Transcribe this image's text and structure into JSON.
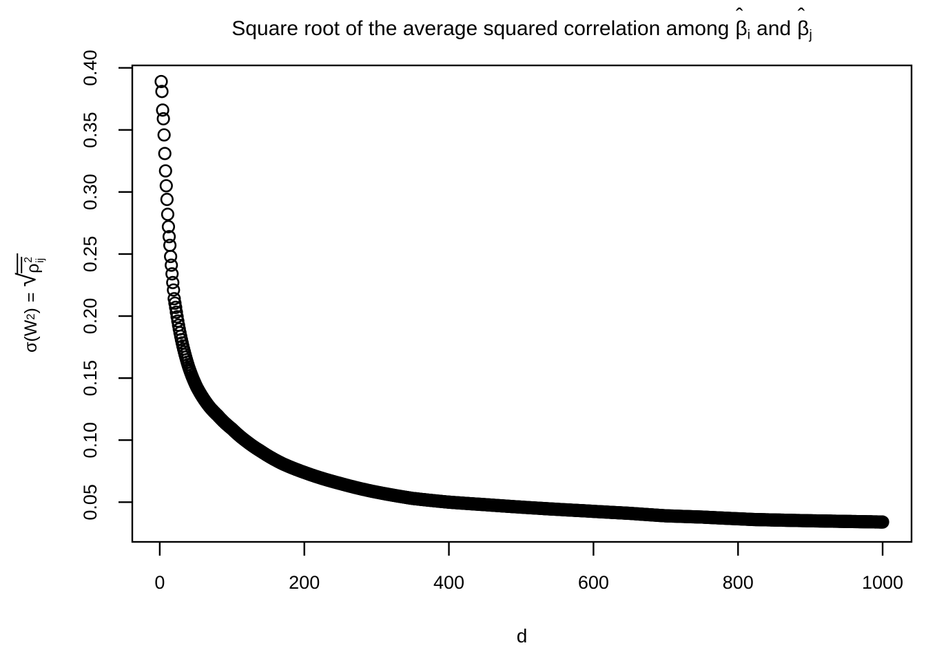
{
  "figure": {
    "title": {
      "prefix": "Square root of the average squared correlation among",
      "hat": "ˆ",
      "beta": "β",
      "sub_i": "i",
      "conj": "and",
      "sub_j": "j"
    },
    "ylabel": {
      "sigma_open": "σ(W",
      "w_sub": "2",
      "close": ")",
      "eq": "=",
      "radical_sign": "√",
      "rho": "ρ",
      "sup2": "2",
      "sub_ij": "ij"
    },
    "xlabel": "d"
  },
  "chart_data": {
    "type": "scatter",
    "title": "Square root of the average squared correlation among β̂i and β̂j",
    "xlabel": "d",
    "ylabel": "σ(W2) = √(mean of ρij²)",
    "background": "#ffffff",
    "point_color": "#000000",
    "grid": false,
    "legend": null,
    "axes": {
      "xlim": [
        -38,
        1040
      ],
      "ylim": [
        0.018,
        0.402
      ],
      "x_ticks": {
        "values": [
          0,
          200,
          400,
          600,
          800,
          1000
        ],
        "labels": [
          "0",
          "200",
          "400",
          "600",
          "800",
          "1000"
        ]
      },
      "y_ticks": {
        "values": [
          0.05,
          0.1,
          0.15,
          0.2,
          0.25,
          0.3,
          0.35,
          0.4
        ],
        "labels": [
          "0.05",
          "0.10",
          "0.15",
          "0.20",
          "0.25",
          "0.30",
          "0.35",
          "0.40"
        ]
      }
    },
    "marker": {
      "shape": "open-circle",
      "radius_px": 8.3,
      "stroke_px": 2.6
    },
    "series": [
      {
        "name": "sigma(W2) vs d",
        "d_min": 2,
        "d_max": 1000,
        "d_step": 1,
        "interpolation": "log-log through anchor points",
        "points": [
          [
            2,
            0.389
          ],
          [
            3,
            0.381
          ],
          [
            4,
            0.366
          ],
          [
            5,
            0.359
          ],
          [
            6,
            0.346
          ],
          [
            7,
            0.331
          ],
          [
            8,
            0.317
          ],
          [
            9,
            0.305
          ],
          [
            10,
            0.294
          ],
          [
            11,
            0.282
          ],
          [
            12,
            0.272
          ],
          [
            13,
            0.264
          ],
          [
            14,
            0.257
          ],
          [
            15,
            0.248
          ],
          [
            16,
            0.241
          ],
          [
            17,
            0.234
          ],
          [
            18,
            0.227
          ],
          [
            19,
            0.221
          ],
          [
            20,
            0.214
          ],
          [
            22,
            0.207
          ],
          [
            25,
            0.196
          ],
          [
            30,
            0.181
          ],
          [
            35,
            0.169
          ],
          [
            40,
            0.159
          ],
          [
            45,
            0.151
          ],
          [
            51,
            0.143
          ],
          [
            60,
            0.134
          ],
          [
            70,
            0.126
          ],
          [
            80,
            0.12
          ],
          [
            90,
            0.114
          ],
          [
            100,
            0.109
          ],
          [
            120,
            0.099
          ],
          [
            140,
            0.091
          ],
          [
            170,
            0.081
          ],
          [
            200,
            0.074
          ],
          [
            250,
            0.065
          ],
          [
            292,
            0.059
          ],
          [
            350,
            0.053
          ],
          [
            400,
            0.05
          ],
          [
            450,
            0.048
          ],
          [
            500,
            0.046
          ],
          [
            588,
            0.043
          ],
          [
            650,
            0.041
          ],
          [
            700,
            0.039
          ],
          [
            750,
            0.038
          ],
          [
            823,
            0.036
          ],
          [
            900,
            0.035
          ],
          [
            1000,
            0.034
          ]
        ]
      }
    ]
  }
}
